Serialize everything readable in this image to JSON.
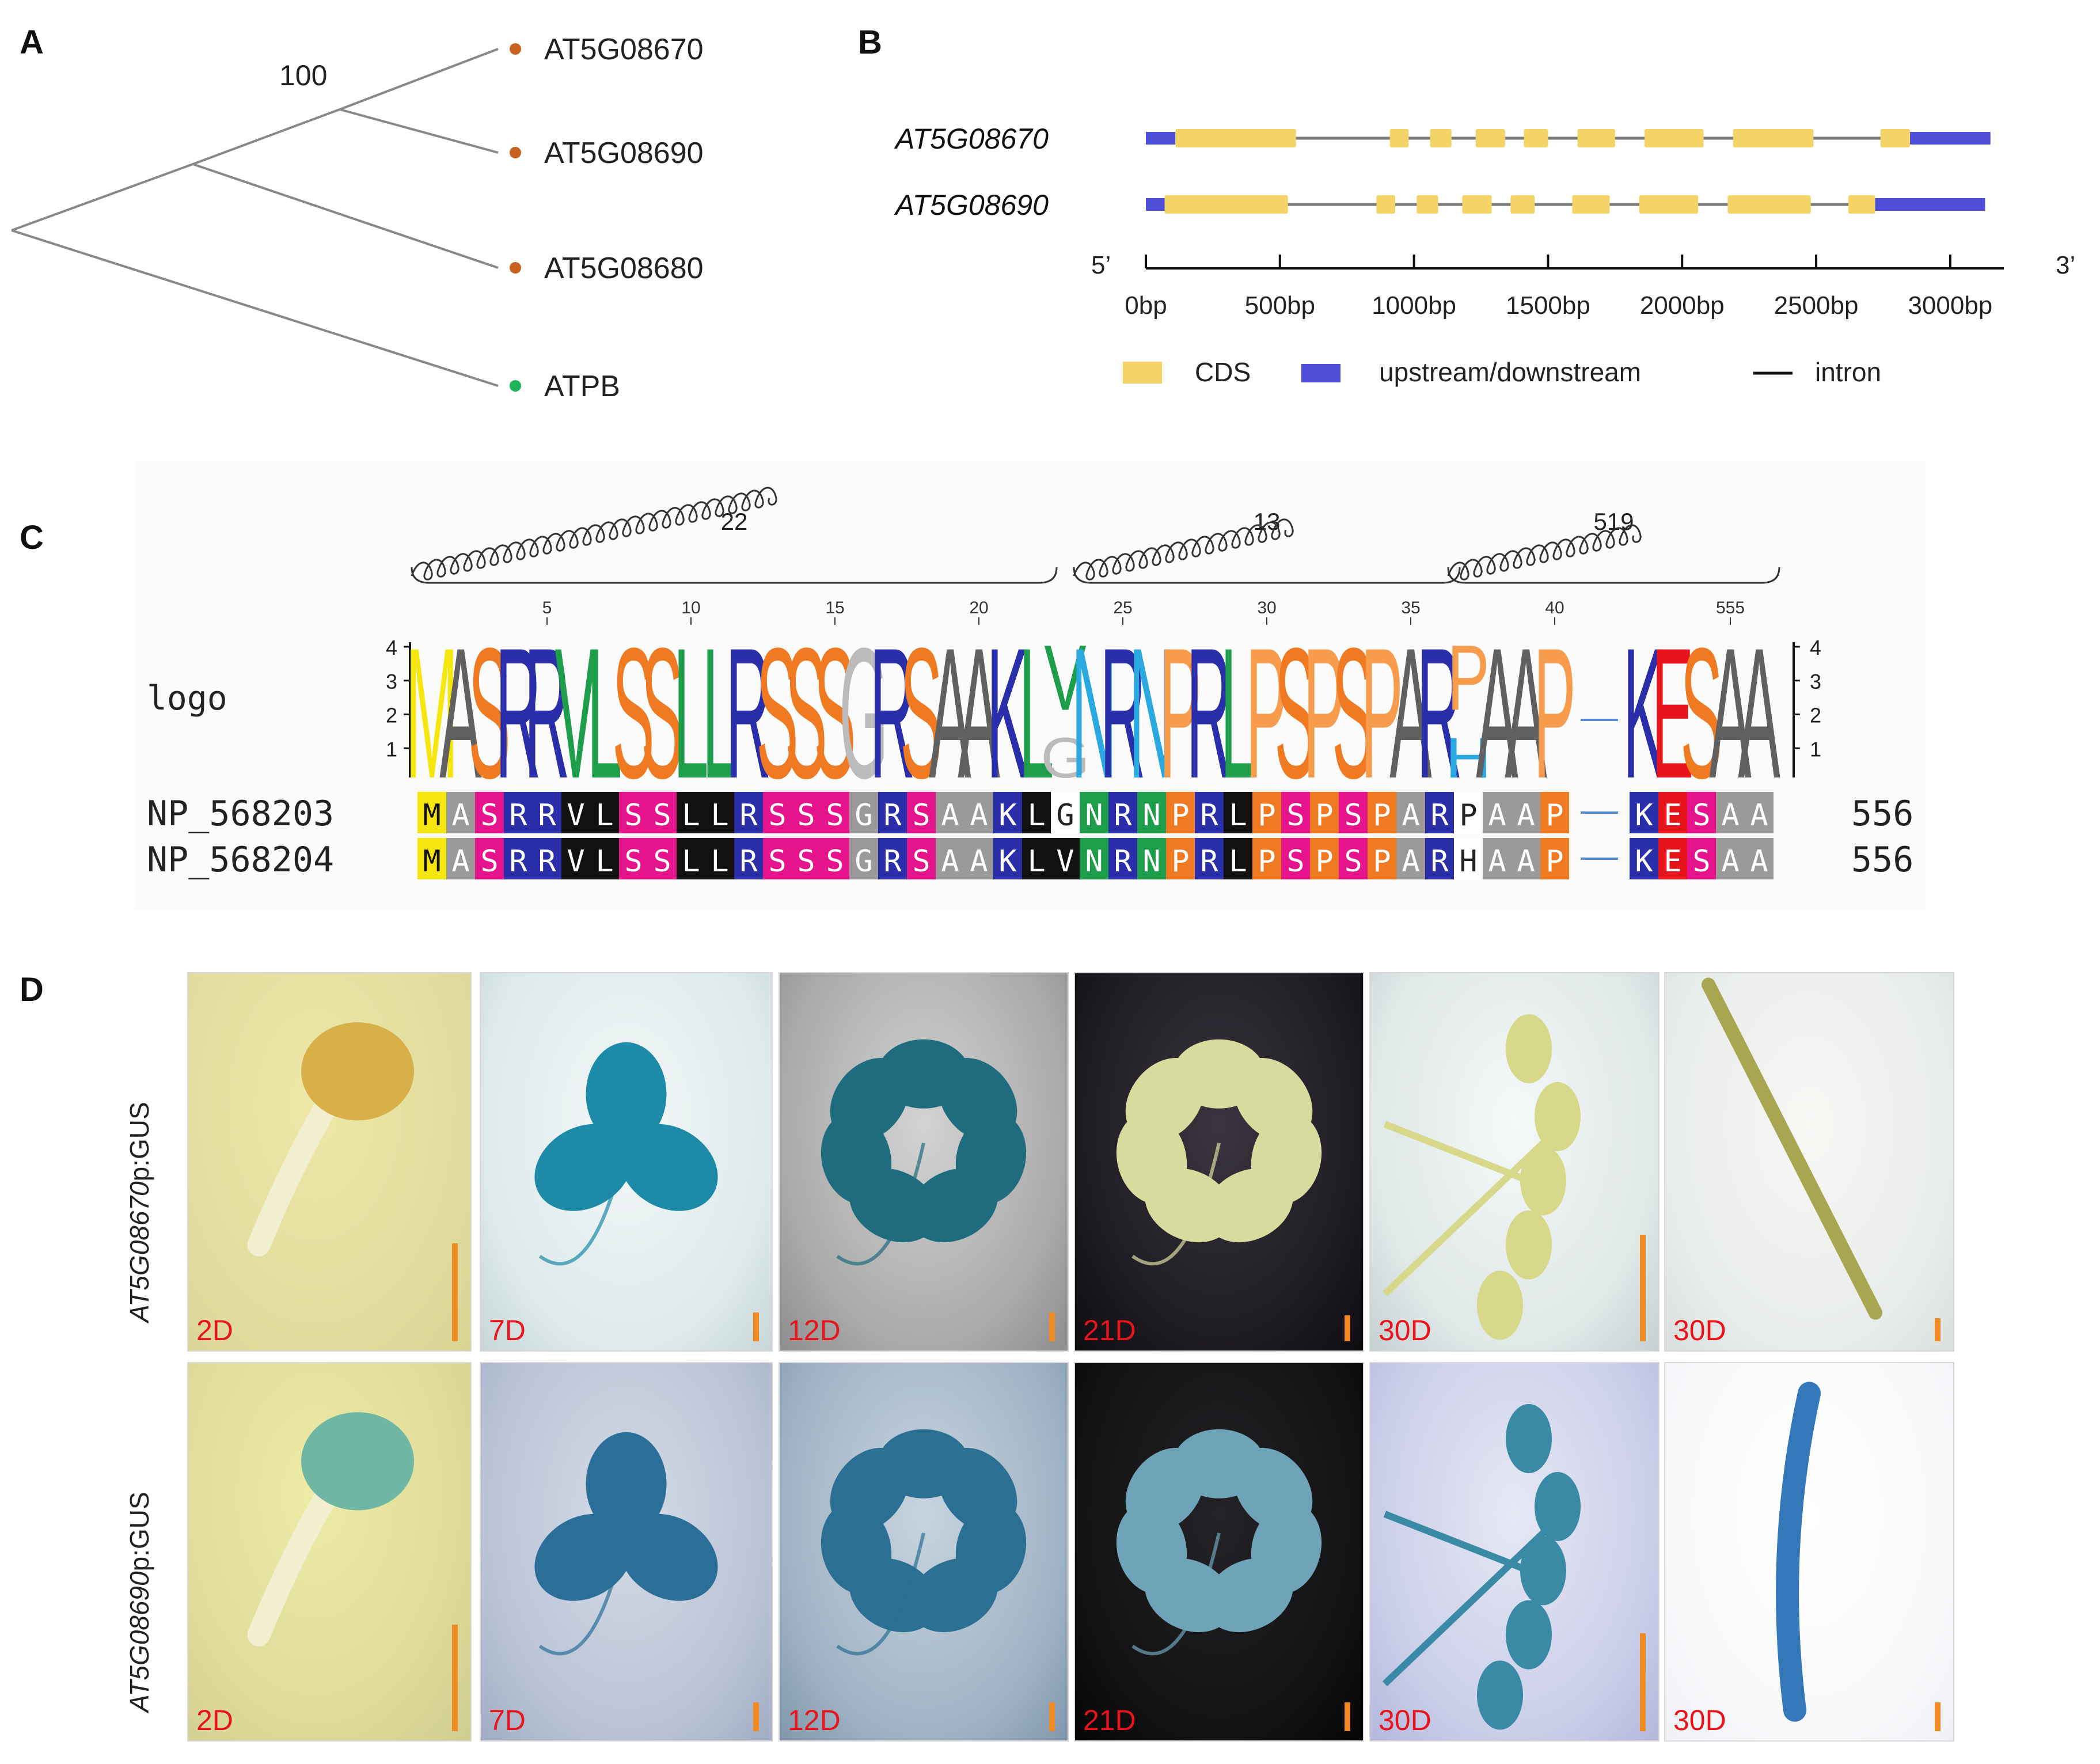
{
  "panels": {
    "a": "A",
    "b": "B",
    "c": "C",
    "d": "D"
  },
  "tree": {
    "bootstrap": "100",
    "leaves": [
      {
        "label": "AT5G08670",
        "dot_color": "#c8621e"
      },
      {
        "label": "AT5G08690",
        "dot_color": "#c8621e"
      },
      {
        "label": "AT5G08680",
        "dot_color": "#c8621e"
      },
      {
        "label": "ATPB",
        "dot_color": "#1fb35a"
      }
    ]
  },
  "gene_structure": {
    "genes": [
      {
        "name": "AT5G08670",
        "length_bp": 3150,
        "upstream": [
          0,
          110
        ],
        "cds": [
          [
            110,
            560
          ],
          [
            910,
            980
          ],
          [
            1060,
            1140
          ],
          [
            1230,
            1340
          ],
          [
            1410,
            1500
          ],
          [
            1610,
            1750
          ],
          [
            1860,
            2080
          ],
          [
            2190,
            2490
          ],
          [
            2740,
            2850
          ]
        ],
        "downstream": [
          2850,
          3150
        ]
      },
      {
        "name": "AT5G08690",
        "length_bp": 3130,
        "upstream": [
          0,
          70
        ],
        "cds": [
          [
            70,
            530
          ],
          [
            860,
            930
          ],
          [
            1010,
            1090
          ],
          [
            1180,
            1290
          ],
          [
            1360,
            1450
          ],
          [
            1590,
            1730
          ],
          [
            1840,
            2060
          ],
          [
            2170,
            2480
          ],
          [
            2620,
            2720
          ]
        ],
        "downstream": [
          2720,
          3130
        ]
      }
    ],
    "axis": {
      "five_prime": "5’",
      "three_prime": "3’",
      "ticks": [
        "0bp",
        "500bp",
        "1000bp",
        "1500bp",
        "2000bp",
        "2500bp",
        "3000bp"
      ],
      "tick_values": [
        0,
        500,
        1000,
        1500,
        2000,
        2500,
        3000
      ]
    },
    "legend": {
      "cds": "CDS",
      "updown": "upstream/downstream",
      "intron": "intron"
    },
    "colors": {
      "cds": "#f4d467",
      "updown": "#4e4ed8",
      "intron": "#7a7a7a"
    }
  },
  "alignment": {
    "helix_labels": [
      "22",
      "13",
      "519"
    ],
    "position_ticks": [
      "5",
      "10",
      "15",
      "20",
      "25",
      "30",
      "35",
      "40",
      "555"
    ],
    "logo_label": "logo",
    "logo_y_ticks": [
      "4",
      "3",
      "2",
      "1"
    ],
    "logo_letters": [
      "M",
      "A",
      "S",
      "R",
      "R",
      "V",
      "L",
      "S",
      "S",
      "L",
      "L",
      "R",
      "S",
      "S",
      "S",
      "G",
      "R",
      "S",
      "A",
      "A",
      "K",
      "L",
      "V",
      "N",
      "R",
      "N",
      "P",
      "R",
      "L",
      "P",
      "S",
      "P",
      "S",
      "P",
      "A",
      "R",
      "P",
      "A",
      "A",
      "P",
      "K",
      "E",
      "S",
      "A",
      "A"
    ],
    "logo_second": {
      "index": 22,
      "letter": "G"
    },
    "logo_second_b": {
      "index": 36,
      "letter": "H"
    },
    "sequences": [
      {
        "name": "NP_568203",
        "residues": [
          "M",
          "A",
          "S",
          "R",
          "R",
          "V",
          "L",
          "S",
          "S",
          "L",
          "L",
          "R",
          "S",
          "S",
          "S",
          "G",
          "R",
          "S",
          "A",
          "A",
          "K",
          "L",
          "G",
          "N",
          "R",
          "N",
          "P",
          "R",
          "L",
          "P",
          "S",
          "P",
          "S",
          "P",
          "A",
          "R",
          "P",
          "A",
          "A",
          "P",
          "K",
          "E",
          "S",
          "A",
          "A"
        ],
        "count": "556"
      },
      {
        "name": "NP_568204",
        "residues": [
          "M",
          "A",
          "S",
          "R",
          "R",
          "V",
          "L",
          "S",
          "S",
          "L",
          "L",
          "R",
          "S",
          "S",
          "S",
          "G",
          "R",
          "S",
          "A",
          "A",
          "K",
          "L",
          "V",
          "N",
          "R",
          "N",
          "P",
          "R",
          "L",
          "P",
          "S",
          "P",
          "S",
          "P",
          "A",
          "R",
          "H",
          "A",
          "A",
          "P",
          "K",
          "E",
          "S",
          "A",
          "A"
        ],
        "count": "556"
      }
    ]
  },
  "gus": {
    "rows": [
      {
        "gene": "AT5G08670",
        "suffix": "p:GUS",
        "labels": [
          "2D",
          "7D",
          "12D",
          "21D",
          "30D",
          "30D"
        ]
      },
      {
        "gene": "AT5G08690",
        "suffix": "p:GUS",
        "labels": [
          "2D",
          "7D",
          "12D",
          "21D",
          "30D",
          "30D"
        ]
      }
    ]
  }
}
